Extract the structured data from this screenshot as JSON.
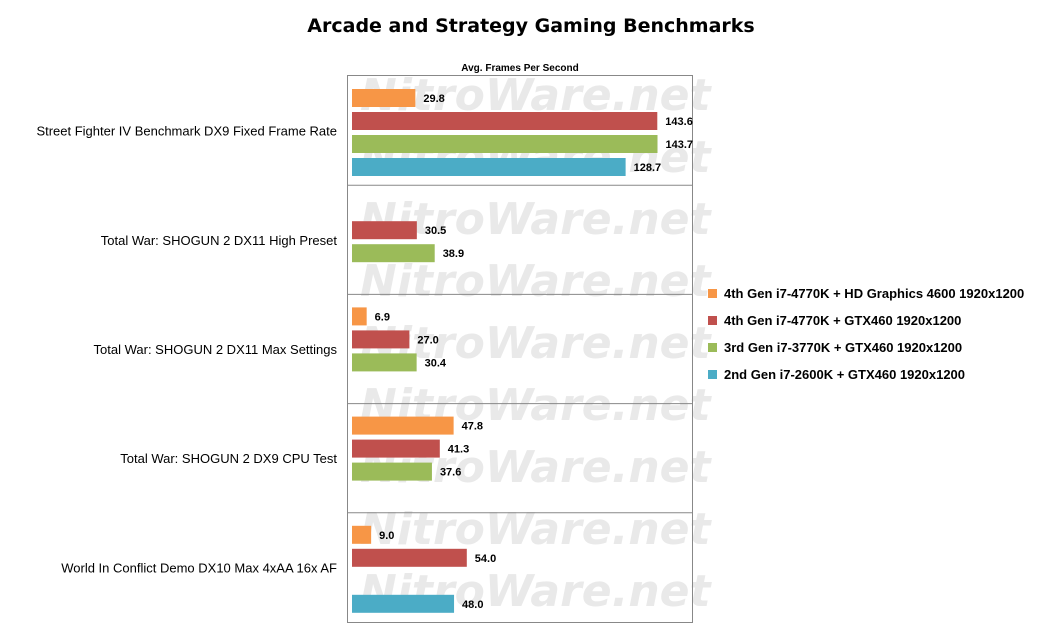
{
  "chart_data": {
    "type": "bar",
    "orientation": "horizontal",
    "title": "Arcade and Strategy Gaming Benchmarks",
    "xlabel": "Avg. Frames Per Second",
    "xlim": [
      0,
      155
    ],
    "grid": false,
    "legend_position": "right",
    "watermark": "NitroWare.net",
    "categories": [
      "Street Fighter IV Benchmark DX9 Fixed Frame Rate",
      "Total War: SHOGUN 2 DX11 High Preset",
      "Total War: SHOGUN 2 DX11 Max Settings",
      "Total War: SHOGUN 2 DX9 CPU Test",
      "World In Conflict Demo DX10 Max 4xAA 16x AF"
    ],
    "series": [
      {
        "name": "4th Gen i7-4770K + HD Graphics 4600 1920x1200",
        "color": "#f79646",
        "values": [
          29.8,
          null,
          6.9,
          47.8,
          9.0
        ]
      },
      {
        "name": "4th Gen i7-4770K + GTX460 1920x1200",
        "color": "#c0504d",
        "values": [
          143.6,
          30.5,
          27.0,
          41.3,
          54.0
        ]
      },
      {
        "name": "3rd Gen i7-3770K + GTX460 1920x1200",
        "color": "#9bbb59",
        "values": [
          143.7,
          38.9,
          30.4,
          37.6,
          null
        ]
      },
      {
        "name": "2nd Gen i7-2600K + GTX460 1920x1200",
        "color": "#4bacc6",
        "values": [
          128.7,
          null,
          null,
          null,
          48.0
        ]
      }
    ]
  }
}
